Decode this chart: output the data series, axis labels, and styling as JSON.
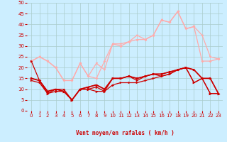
{
  "x": [
    0,
    1,
    2,
    3,
    4,
    5,
    6,
    7,
    8,
    9,
    10,
    11,
    12,
    13,
    14,
    15,
    16,
    17,
    18,
    19,
    20,
    21,
    22,
    23
  ],
  "line_light1": [
    23,
    25,
    23,
    20,
    14,
    14,
    22,
    16,
    22,
    19,
    31,
    31,
    32,
    35,
    33,
    35,
    42,
    41,
    46,
    38,
    39,
    35,
    25,
    24
  ],
  "line_light2": [
    23,
    25,
    23,
    20,
    14,
    14,
    22,
    16,
    15,
    23,
    31,
    30,
    32,
    33,
    33,
    35,
    42,
    41,
    46,
    38,
    39,
    23,
    23,
    24
  ],
  "line_dark1": [
    23,
    14,
    8,
    10,
    9,
    5,
    10,
    10,
    11,
    9,
    15,
    15,
    16,
    14,
    16,
    17,
    16,
    17,
    19,
    20,
    13,
    15,
    8,
    8
  ],
  "line_dark2": [
    14,
    13,
    8,
    9,
    9,
    5,
    10,
    10,
    9,
    9,
    12,
    13,
    13,
    13,
    14,
    15,
    16,
    17,
    19,
    20,
    13,
    15,
    8,
    8
  ],
  "line_dark3": [
    15,
    14,
    9,
    10,
    9,
    5,
    10,
    11,
    12,
    10,
    15,
    15,
    16,
    15,
    16,
    17,
    17,
    18,
    19,
    20,
    19,
    15,
    15,
    8
  ],
  "line_dark4": [
    15,
    14,
    9,
    10,
    10,
    5,
    10,
    11,
    12,
    10,
    15,
    15,
    16,
    15,
    16,
    17,
    17,
    18,
    19,
    20,
    19,
    15,
    15,
    8
  ],
  "ylim": [
    0,
    50
  ],
  "xlim": [
    -0.5,
    23.5
  ],
  "yticks": [
    0,
    5,
    10,
    15,
    20,
    25,
    30,
    35,
    40,
    45,
    50
  ],
  "xticks": [
    0,
    1,
    2,
    3,
    4,
    5,
    6,
    7,
    8,
    9,
    10,
    11,
    12,
    13,
    14,
    15,
    16,
    17,
    18,
    19,
    20,
    21,
    22,
    23
  ],
  "xlabel": "Vent moyen/en rafales ( km/h )",
  "bg_color": "#cceeff",
  "grid_color": "#aacccc",
  "line_dark_red": "#cc0000",
  "line_light_red": "#ffaaaa",
  "tick_color": "#cc0000",
  "xlabel_color": "#cc0000",
  "arrows": [
    "↙",
    "↘",
    "↙",
    "↙",
    "↙",
    "↙",
    "↙",
    "↙",
    "↙",
    "→",
    "→",
    "→",
    "→",
    "→",
    "→",
    "→",
    "→",
    "↘",
    "↙",
    "↙",
    "↙",
    "↙",
    "↘",
    "↘"
  ]
}
